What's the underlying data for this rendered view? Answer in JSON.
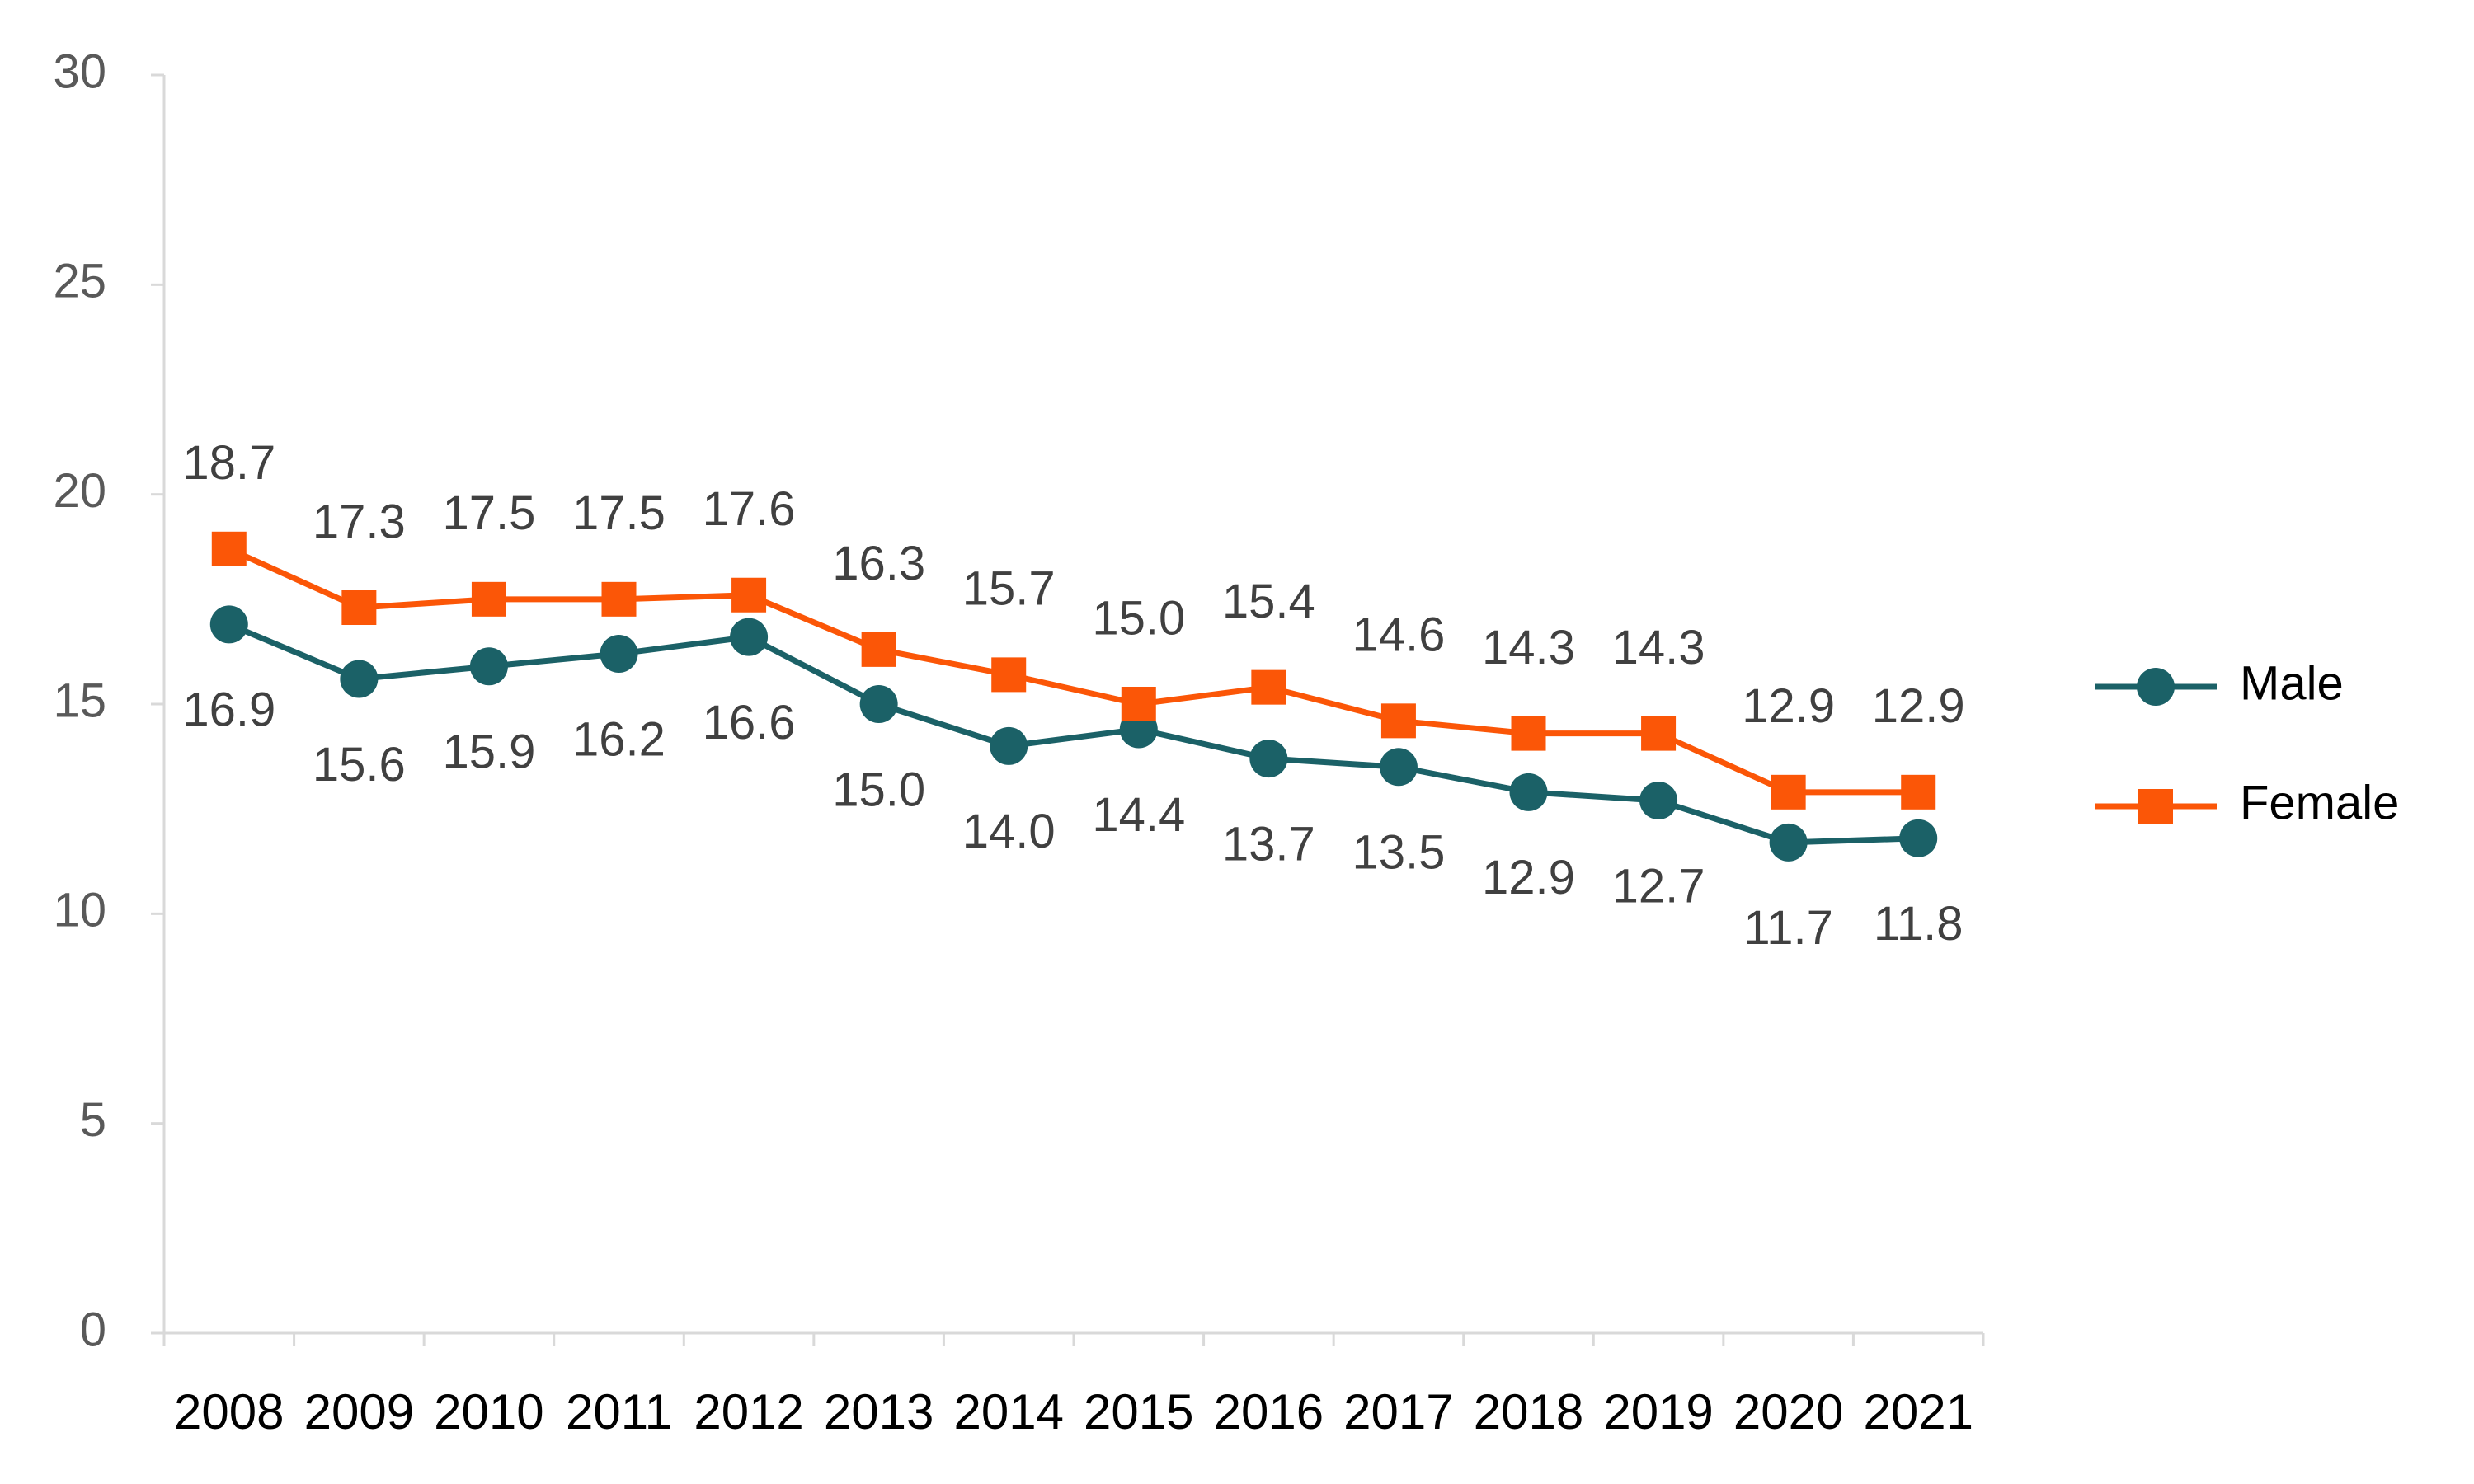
{
  "chart_data": {
    "type": "line",
    "categories": [
      "2008",
      "2009",
      "2010",
      "2011",
      "2012",
      "2013",
      "2014",
      "2015",
      "2016",
      "2017",
      "2018",
      "2019",
      "2020",
      "2021"
    ],
    "series": [
      {
        "name": "Male",
        "color": "#1b6167",
        "marker": "circle",
        "values": [
          16.9,
          15.6,
          15.9,
          16.2,
          16.6,
          15.0,
          14.0,
          14.4,
          13.7,
          13.5,
          12.9,
          12.7,
          11.7,
          11.8
        ],
        "value_labels": [
          "16.9",
          "15.6",
          "15.9",
          "16.2",
          "16.6",
          "15.0",
          "14.0",
          "14.4",
          "13.7",
          "13.5",
          "12.9",
          "12.7",
          "11.7",
          "11.8"
        ]
      },
      {
        "name": "Female",
        "color": "#fb5607",
        "marker": "square",
        "values": [
          18.7,
          17.3,
          17.5,
          17.5,
          17.6,
          16.3,
          15.7,
          15.0,
          15.4,
          14.6,
          14.3,
          14.3,
          12.9,
          12.9
        ],
        "value_labels": [
          "18.7",
          "17.3",
          "17.5",
          "17.5",
          "17.6",
          "16.3",
          "15.7",
          "15.0",
          "15.4",
          "14.6",
          "14.3",
          "14.3",
          "12.9",
          "12.9"
        ]
      }
    ],
    "ylim": [
      0,
      30
    ],
    "yticks": [
      0,
      5,
      10,
      15,
      20,
      25,
      30
    ],
    "grid": false,
    "legend": "right"
  }
}
